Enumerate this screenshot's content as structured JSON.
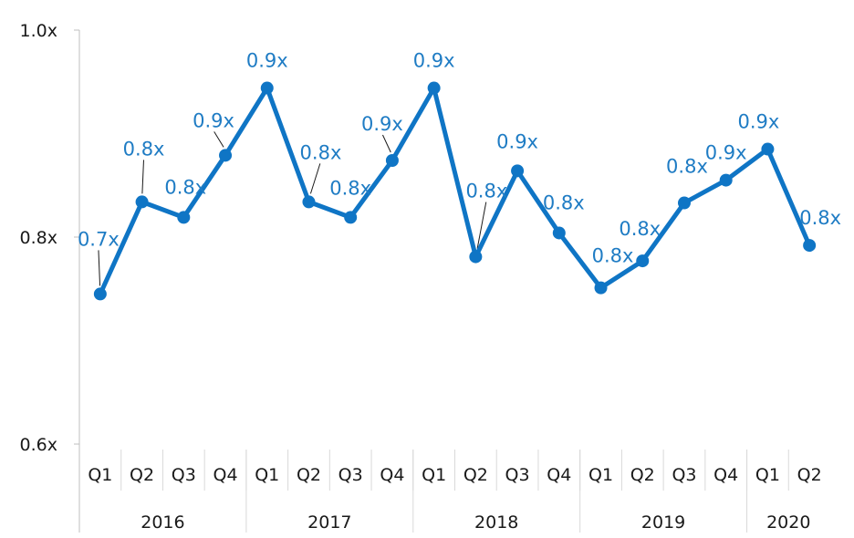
{
  "chart_data": {
    "type": "line",
    "title": "",
    "xlabel": "",
    "ylabel": "",
    "ylim": [
      0.6,
      1.0
    ],
    "yticks": [
      "0.6x",
      "0.8x",
      "1.0x"
    ],
    "ytick_values": [
      0.6,
      0.8,
      1.0
    ],
    "grid": false,
    "color": "#0f75c5",
    "quarters": [
      "Q1",
      "Q2",
      "Q3",
      "Q4",
      "Q1",
      "Q2",
      "Q3",
      "Q4",
      "Q1",
      "Q2",
      "Q3",
      "Q4",
      "Q1",
      "Q2",
      "Q3",
      "Q4",
      "Q1",
      "Q2"
    ],
    "years": [
      {
        "label": "2016",
        "quarters": 4
      },
      {
        "label": "2017",
        "quarters": 4
      },
      {
        "label": "2018",
        "quarters": 4
      },
      {
        "label": "2019",
        "quarters": 4
      },
      {
        "label": "2020",
        "quarters": 2
      }
    ],
    "series": [
      {
        "values": [
          0.745,
          0.834,
          0.819,
          0.879,
          0.944,
          0.834,
          0.819,
          0.874,
          0.944,
          0.781,
          0.864,
          0.804,
          0.751,
          0.777,
          0.833,
          0.855,
          0.885,
          0.792
        ],
        "labels": [
          "0.7x",
          "0.8x",
          "0.8x",
          "0.9x",
          "0.9x",
          "0.8x",
          "0.8x",
          "0.9x",
          "0.9x",
          "0.8x",
          "0.9x",
          "0.8x",
          "0.8x",
          "0.8x",
          "0.8x",
          "0.9x",
          "0.9x",
          "0.8x"
        ]
      }
    ]
  }
}
